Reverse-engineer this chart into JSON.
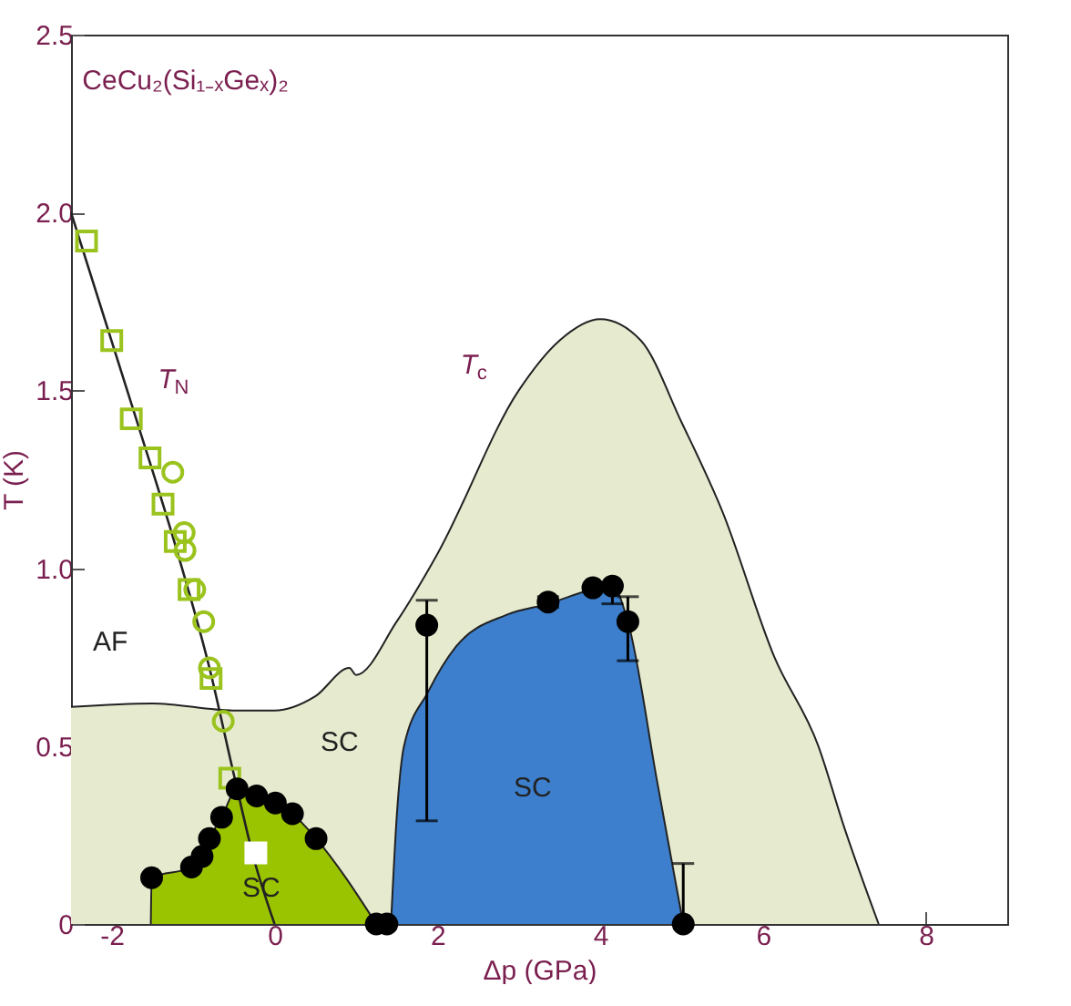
{
  "chart_data": {
    "type": "scatter",
    "title": "CeCu₂(Si₁₋ₓGeₓ)₂",
    "xlabel": "Δp (GPa)",
    "ylabel": "T (K)",
    "xlim": [
      -2.5,
      9
    ],
    "ylim": [
      0,
      2.5
    ],
    "xticks": [
      -2,
      0,
      2,
      4,
      6,
      8
    ],
    "yticks": [
      0,
      0.5,
      {
        "value": 1,
        "label": "1.0"
      },
      1.5,
      {
        "value": 2,
        "label": "2.0"
      },
      2.5
    ],
    "grid": false,
    "series": [
      {
        "type": "area",
        "name": "T$_{c}$",
        "color": "#e6ebcf",
        "x": [
          -2.5,
          -1.5,
          -0.5,
          0,
          0.5,
          0.92,
          1,
          1.5,
          2,
          3,
          3.5,
          4,
          4.5,
          5,
          5.5,
          6.14,
          6.68,
          7,
          7.42
        ],
        "values": [
          0.61,
          0.62,
          0.6,
          0.6,
          0.64,
          0.72,
          0.7,
          0.85,
          1.04,
          1.5,
          1.64,
          1.7,
          1.64,
          1.41,
          1.16,
          0.75,
          0.5,
          0.27,
          0
        ]
      },
      {
        "type": "area",
        "color": "#3d7fcc",
        "x": [
          1.43,
          1.5,
          1.59,
          1.88,
          2.23,
          2.86,
          3.36,
          3.9,
          4.15,
          4.34,
          4.7,
          5.02
        ],
        "values": [
          0,
          0.3,
          0.5,
          0.65,
          0.78,
          0.87,
          0.9,
          0.94,
          0.95,
          0.85,
          0.4,
          0
        ]
      },
      {
        "type": "area",
        "color": "#9bc400",
        "x": [
          -1.52,
          -1.51,
          -1.02,
          -0.95,
          -0.89,
          -0.8,
          -0.65,
          -0.46,
          -0.22,
          0.01,
          0.22,
          0.51,
          1.25
        ],
        "values": [
          0,
          0.13,
          0.16,
          0.18,
          0.19,
          0.24,
          0.3,
          0.38,
          0.36,
          0.34,
          0.31,
          0.24,
          0
        ]
      },
      {
        "type": "line",
        "name": "T$_{N}$",
        "color": "#222222",
        "x": [
          -2.5,
          -1.7,
          -1.2,
          -0.8,
          -0.5,
          -0.25,
          0
        ],
        "values": [
          2.0,
          1.42,
          1.05,
          0.72,
          0.42,
          0.18,
          0
        ]
      },
      {
        "color": "#9bc31e",
        "marker": "square",
        "x": [
          -2.31,
          -2.0,
          -1.76,
          -1.53,
          -1.37,
          -1.22,
          -1.05,
          -0.78,
          -0.55
        ],
        "values": [
          1.92,
          1.64,
          1.42,
          1.31,
          1.18,
          1.075,
          0.94,
          0.69,
          0.41
        ]
      },
      {
        "color": "#9bc31e",
        "marker": "circle",
        "x": [
          -1.25,
          -1.11,
          -1.1,
          -0.98,
          -0.87,
          -0.8,
          -0.63
        ],
        "values": [
          1.27,
          1.1,
          1.05,
          0.94,
          0.85,
          0.72,
          0.57
        ]
      },
      {
        "color": "#ffffff",
        "marker": "square",
        "x": [
          -0.23
        ],
        "values": [
          0.2
        ]
      },
      {
        "color": "#000000",
        "marker": "circle",
        "x": [
          -1.51,
          -1.02,
          -0.95,
          -0.89,
          -0.8,
          -0.65,
          -0.46,
          -0.22,
          0.01,
          0.22,
          0.51,
          1.25,
          1.38,
          1.87,
          3.36,
          3.91,
          4.15,
          4.34,
          5.02
        ],
        "values": [
          0.13,
          0.16,
          null,
          0.19,
          0.24,
          0.3,
          0.38,
          0.36,
          0.34,
          0.31,
          0.24,
          0,
          0,
          0.84,
          0.905,
          0.945,
          0.95,
          0.85,
          0
        ],
        "errors": [
          null,
          null,
          null,
          null,
          null,
          null,
          null,
          null,
          null,
          null,
          null,
          null,
          null,
          [
            0.29,
            0.91
          ],
          [
            0.89,
            0.92
          ],
          null,
          [
            0.9,
            0.95
          ],
          [
            0.74,
            0.92
          ],
          [
            0,
            0.17
          ]
        ]
      }
    ],
    "annotations": [
      "AF",
      "SC",
      "SC",
      "SC"
    ]
  }
}
